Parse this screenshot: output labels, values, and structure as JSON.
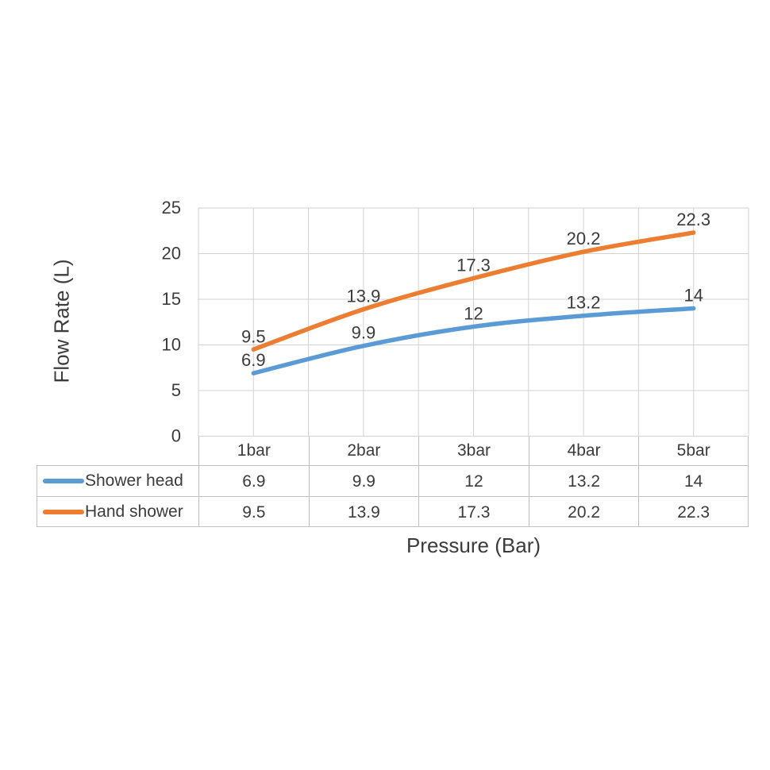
{
  "chart_data": {
    "type": "line",
    "title": "",
    "xlabel": "Pressure (Bar)",
    "ylabel": "Flow Rate (L)",
    "categories": [
      "1bar",
      "2bar",
      "3bar",
      "4bar",
      "5bar"
    ],
    "series": [
      {
        "name": "Shower head",
        "color": "#5B9BD5",
        "values": [
          6.9,
          9.9,
          12,
          13.2,
          14
        ]
      },
      {
        "name": "Hand shower",
        "color": "#ED7D31",
        "values": [
          9.5,
          13.9,
          17.3,
          20.2,
          22.3
        ]
      }
    ],
    "ylim": [
      0,
      25
    ],
    "yticks": [
      0,
      5,
      10,
      15,
      20,
      25
    ],
    "grid": true,
    "minor_vertical_gridlines": true,
    "data_labels": "above",
    "legend_position": "data-table-left",
    "gridline_color": "#d2d2d2",
    "table_border_color": "#bfbfbf",
    "text_color": "#3b3b3b"
  }
}
